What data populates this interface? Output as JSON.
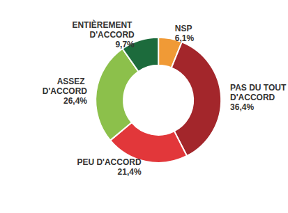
{
  "chart_data": {
    "type": "pie",
    "categories": [
      "NSP",
      "PAS DU TOUT D'ACCORD",
      "PEU D'ACCORD",
      "ASSEZ D'ACCORD",
      "ENTIÈREMENT D'ACCORD"
    ],
    "values": [
      6.1,
      36.4,
      21.4,
      26.4,
      9.7
    ],
    "value_labels": [
      "6,1%",
      "36,4%",
      "21,4%",
      "26,4%",
      "9,7%"
    ],
    "colors": [
      "#f09a36",
      "#a3262b",
      "#e2373a",
      "#8cc04b",
      "#1c6b3c"
    ],
    "data_labels": true
  }
}
